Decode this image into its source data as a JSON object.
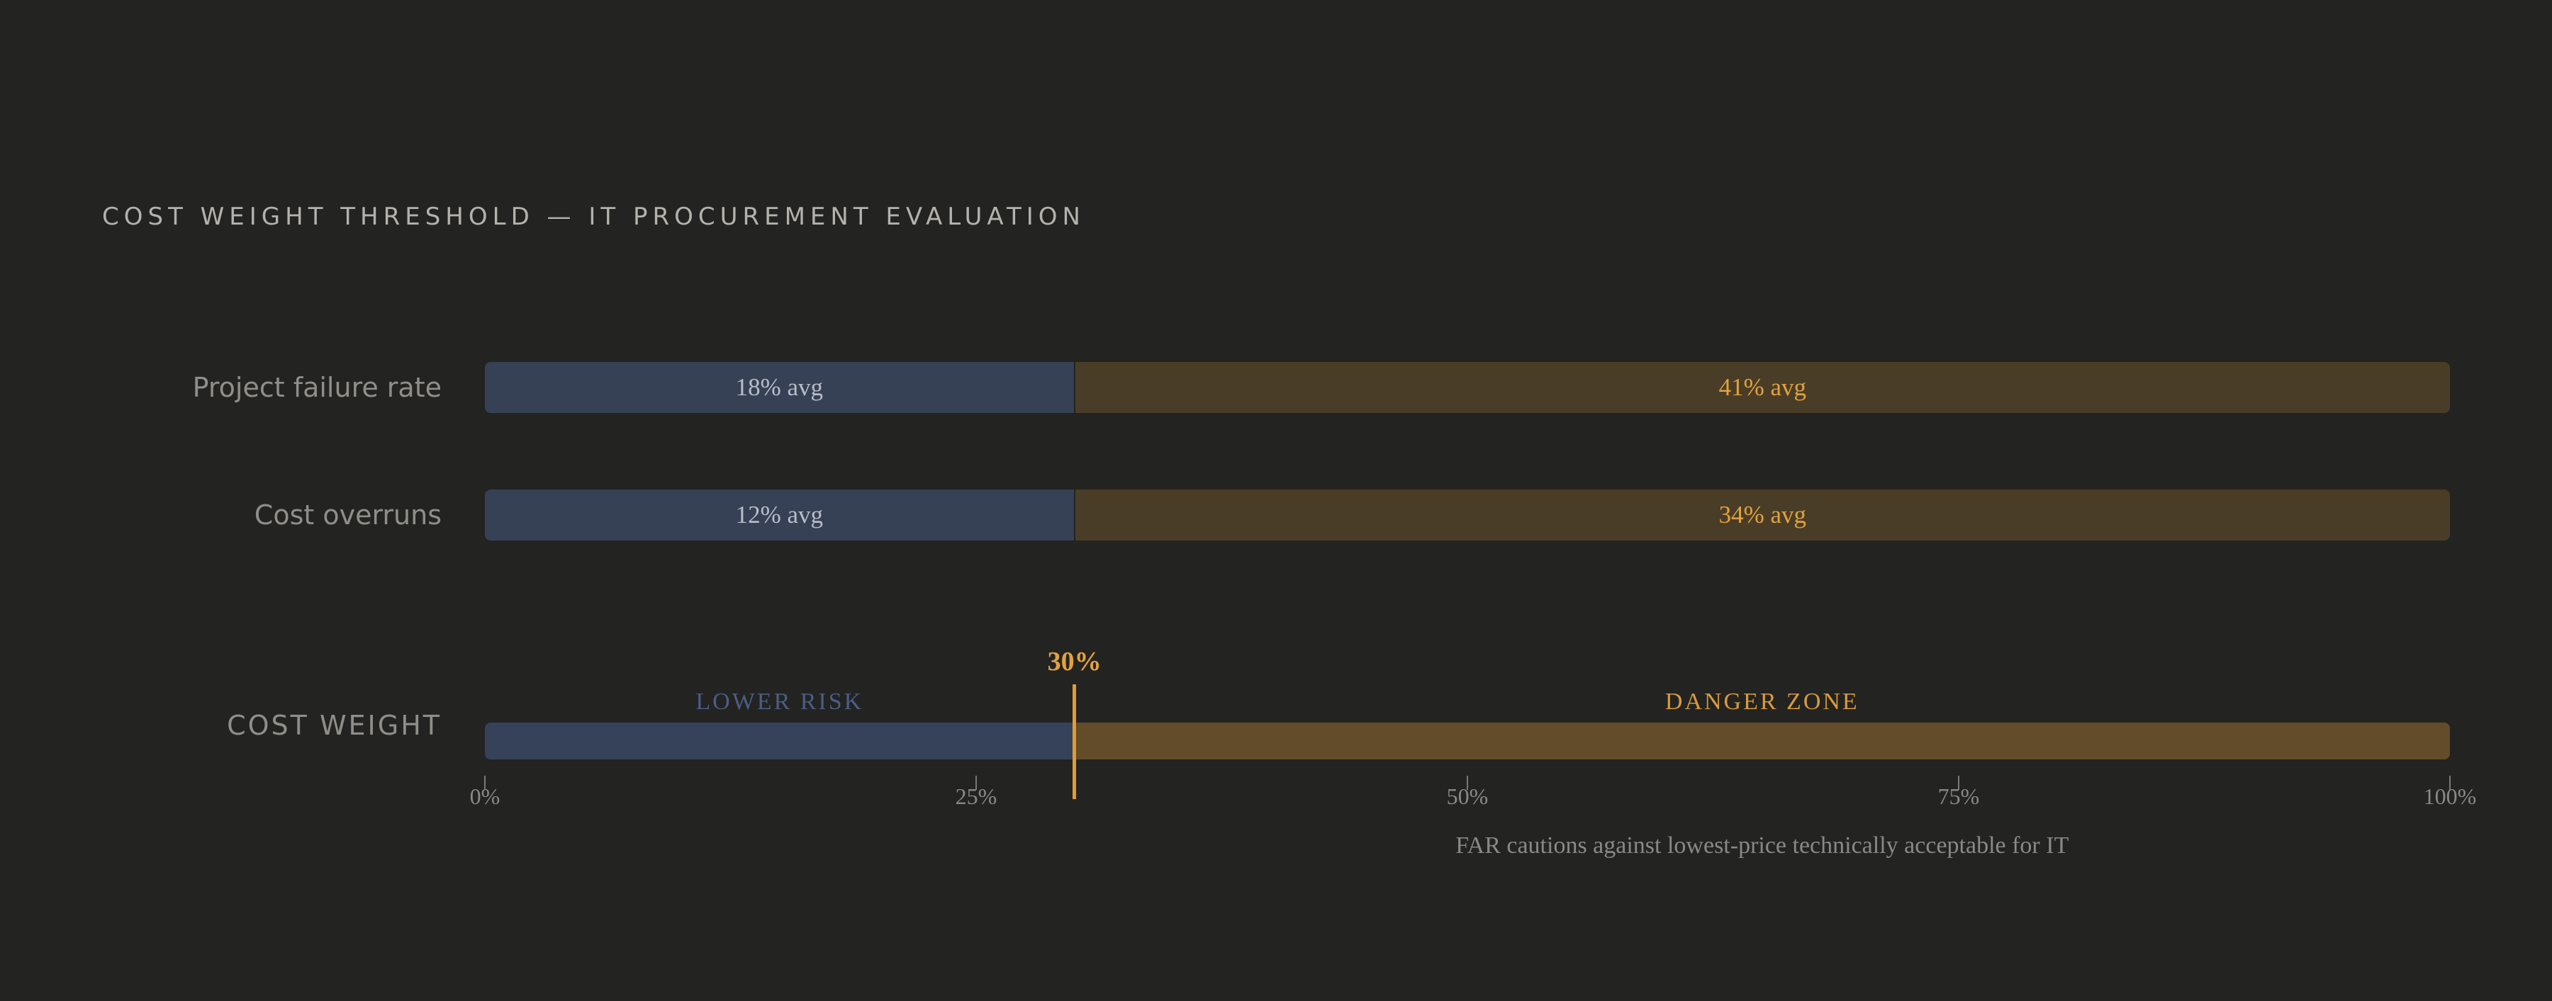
{
  "title": "COST WEIGHT THRESHOLD — IT PROCUREMENT EVALUATION",
  "colors": {
    "background": "#232321",
    "low_segment": "#364155",
    "high_segment": "#4a3d27",
    "low_axis_segment": "#36425a",
    "high_axis_segment": "#624c29",
    "accent": "#e1a240",
    "lower_risk_text": "#4a5e86"
  },
  "chart_data": {
    "type": "bar",
    "orientation": "horizontal",
    "stacked": true,
    "xlim": [
      0,
      100
    ],
    "x_unit": "%",
    "threshold": {
      "value": 30,
      "label": "30%"
    },
    "rows": [
      {
        "label": "Project failure rate",
        "segments": [
          {
            "from": 0,
            "to": 30,
            "label": "18% avg",
            "value": 18
          },
          {
            "from": 30,
            "to": 100,
            "label": "41% avg",
            "value": 41
          }
        ]
      },
      {
        "label": "Cost overruns",
        "segments": [
          {
            "from": 0,
            "to": 30,
            "label": "12% avg",
            "value": 12
          },
          {
            "from": 30,
            "to": 100,
            "label": "34% avg",
            "value": 34
          }
        ]
      }
    ],
    "axis_row": {
      "label": "COST WEIGHT",
      "zones": [
        {
          "from": 0,
          "to": 30,
          "label": "LOWER RISK"
        },
        {
          "from": 30,
          "to": 100,
          "label": "DANGER ZONE"
        }
      ]
    },
    "ticks": [
      {
        "value": 0,
        "label": "0%"
      },
      {
        "value": 25,
        "label": "25%"
      },
      {
        "value": 50,
        "label": "50%"
      },
      {
        "value": 75,
        "label": "75%"
      },
      {
        "value": 100,
        "label": "100%"
      }
    ],
    "annotation": "FAR cautions against lowest-price technically acceptable for IT",
    "grid": false,
    "legend": "none"
  }
}
